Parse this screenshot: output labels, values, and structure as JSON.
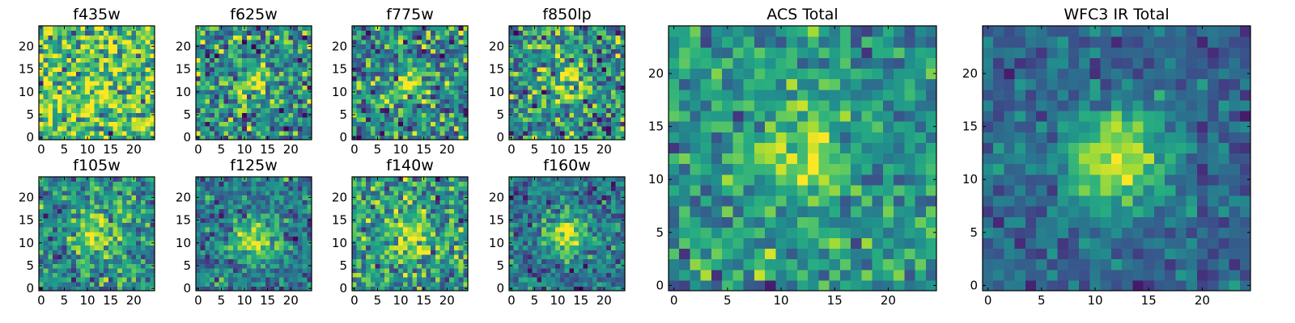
{
  "chart_data": [
    {
      "type": "heatmap",
      "title": "f435w",
      "image_size": 25,
      "xlim": [
        -0.5,
        24.5
      ],
      "ylim": [
        -0.5,
        24.5
      ],
      "xticks": [
        0,
        5,
        10,
        15,
        20
      ],
      "yticks": [
        0,
        5,
        10,
        15,
        20
      ],
      "colormap": "viridis",
      "source": {
        "peak": [
          13,
          11
        ],
        "width": 3.0,
        "amplitude": 0.15,
        "noise": 0.5,
        "base": 0.72,
        "seed": 11
      }
    },
    {
      "type": "heatmap",
      "title": "f625w",
      "image_size": 25,
      "xlim": [
        -0.5,
        24.5
      ],
      "ylim": [
        -0.5,
        24.5
      ],
      "xticks": [
        0,
        5,
        10,
        15,
        20
      ],
      "yticks": [
        0,
        5,
        10,
        15,
        20
      ],
      "colormap": "viridis",
      "source": {
        "peak": [
          12,
          12
        ],
        "width": 2.5,
        "amplitude": 0.35,
        "noise": 0.45,
        "base": 0.5,
        "seed": 23
      }
    },
    {
      "type": "heatmap",
      "title": "f775w",
      "image_size": 25,
      "xlim": [
        -0.5,
        24.5
      ],
      "ylim": [
        -0.5,
        24.5
      ],
      "xticks": [
        0,
        5,
        10,
        15,
        20
      ],
      "yticks": [
        0,
        5,
        10,
        15,
        20
      ],
      "colormap": "viridis",
      "source": {
        "peak": [
          12,
          12
        ],
        "width": 2.5,
        "amplitude": 0.4,
        "noise": 0.45,
        "base": 0.48,
        "seed": 37
      }
    },
    {
      "type": "heatmap",
      "title": "f850lp",
      "image_size": 25,
      "xlim": [
        -0.5,
        24.5
      ],
      "ylim": [
        -0.5,
        24.5
      ],
      "xticks": [
        0,
        5,
        10,
        15,
        20
      ],
      "yticks": [
        0,
        5,
        10,
        15,
        20
      ],
      "colormap": "viridis",
      "source": {
        "peak": [
          12,
          12
        ],
        "width": 2.6,
        "amplitude": 0.4,
        "noise": 0.45,
        "base": 0.5,
        "seed": 41
      }
    },
    {
      "type": "heatmap",
      "title": "f105w",
      "image_size": 25,
      "xlim": [
        -0.5,
        24.5
      ],
      "ylim": [
        -0.5,
        24.5
      ],
      "xticks": [
        0,
        5,
        10,
        15,
        20
      ],
      "yticks": [
        0,
        5,
        10,
        15,
        20
      ],
      "colormap": "viridis",
      "source": {
        "peak": [
          12,
          12
        ],
        "width": 3.0,
        "amplitude": 0.45,
        "noise": 0.35,
        "base": 0.5,
        "seed": 53
      }
    },
    {
      "type": "heatmap",
      "title": "f125w",
      "image_size": 25,
      "xlim": [
        -0.5,
        24.5
      ],
      "ylim": [
        -0.5,
        24.5
      ],
      "xticks": [
        0,
        5,
        10,
        15,
        20
      ],
      "yticks": [
        0,
        5,
        10,
        15,
        20
      ],
      "colormap": "viridis",
      "source": {
        "peak": [
          12,
          11
        ],
        "width": 3.2,
        "amplitude": 0.5,
        "noise": 0.3,
        "base": 0.42,
        "seed": 67
      }
    },
    {
      "type": "heatmap",
      "title": "f140w",
      "image_size": 25,
      "xlim": [
        -0.5,
        24.5
      ],
      "ylim": [
        -0.5,
        24.5
      ],
      "xticks": [
        0,
        5,
        10,
        15,
        20
      ],
      "yticks": [
        0,
        5,
        10,
        15,
        20
      ],
      "colormap": "viridis",
      "source": {
        "peak": [
          12,
          11
        ],
        "width": 3.0,
        "amplitude": 0.35,
        "noise": 0.4,
        "base": 0.55,
        "seed": 79
      }
    },
    {
      "type": "heatmap",
      "title": "f160w",
      "image_size": 25,
      "xlim": [
        -0.5,
        24.5
      ],
      "ylim": [
        -0.5,
        24.5
      ],
      "xticks": [
        0,
        5,
        10,
        15,
        20
      ],
      "yticks": [
        0,
        5,
        10,
        15,
        20
      ],
      "colormap": "viridis",
      "source": {
        "peak": [
          12,
          12
        ],
        "width": 3.0,
        "amplitude": 0.55,
        "noise": 0.3,
        "base": 0.4,
        "seed": 83
      }
    },
    {
      "type": "heatmap",
      "title": "ACS Total",
      "image_size": 25,
      "xlim": [
        -0.5,
        24.5
      ],
      "ylim": [
        -0.5,
        24.5
      ],
      "xticks": [
        0,
        5,
        10,
        15,
        20
      ],
      "yticks": [
        0,
        5,
        10,
        15,
        20
      ],
      "colormap": "viridis",
      "source": {
        "peak": [
          12,
          12
        ],
        "width": 2.5,
        "amplitude": 0.4,
        "noise": 0.3,
        "base": 0.52,
        "seed": 97
      }
    },
    {
      "type": "heatmap",
      "title": "WFC3 IR Total",
      "image_size": 25,
      "xlim": [
        -0.5,
        24.5
      ],
      "ylim": [
        -0.5,
        24.5
      ],
      "xticks": [
        0,
        5,
        10,
        15,
        20
      ],
      "yticks": [
        0,
        5,
        10,
        15,
        20
      ],
      "colormap": "viridis",
      "source": {
        "peak": [
          12,
          12
        ],
        "width": 3.5,
        "amplitude": 0.6,
        "noise": 0.2,
        "base": 0.33,
        "seed": 101
      }
    }
  ]
}
